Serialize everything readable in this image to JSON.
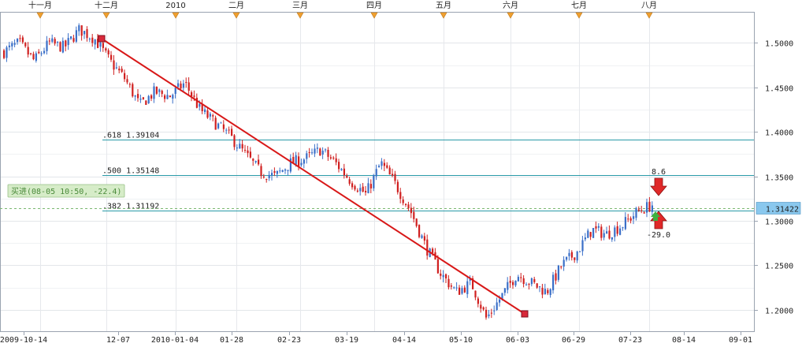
{
  "chart_data": {
    "type": "candlestick",
    "title": "",
    "xlabel": "",
    "ylabel": "",
    "x_axis": {
      "top_month_labels": [
        "十一月",
        "十二月",
        "2010",
        "二月",
        "三月",
        "四月",
        "五月",
        "六月",
        "七月",
        "八月"
      ],
      "bottom_date_labels": [
        "2009-10-14",
        "12-07",
        "2010-01-04",
        "01-28",
        "02-23",
        "03-19",
        "04-14",
        "05-10",
        "06-03",
        "06-29",
        "07-23",
        "08-14",
        "09-01"
      ]
    },
    "y_axis": {
      "range": [
        1.175,
        1.535
      ],
      "tick_labels": [
        "1.5000",
        "1.4500",
        "1.4000",
        "1.3500",
        "1.3000",
        "1.2500",
        "1.2000"
      ],
      "tick_values": [
        1.5,
        1.45,
        1.4,
        1.35,
        1.3,
        1.25,
        1.2
      ]
    },
    "grid": true,
    "current_price": {
      "label": "1.31422",
      "value": 1.31422
    },
    "fibonacci_levels": [
      {
        "label": ".618 1.39104",
        "value": 1.39104
      },
      {
        "label": ".500 1.35148",
        "value": 1.35148
      },
      {
        "label": ".382 1.31192",
        "value": 1.31192
      }
    ],
    "trendline": {
      "start": {
        "date": "2009-11-25",
        "price": 1.5145
      },
      "end": {
        "date": "2010-06-07",
        "price": 1.1875
      }
    },
    "trade_marker": {
      "label": "买进(08-05 10:50, -22.4)"
    },
    "signals": [
      {
        "type": "sell",
        "label": "8.6"
      },
      {
        "type": "buy",
        "label": "-29.0"
      }
    ],
    "series_anchor_prices": [
      1.49,
      1.5,
      1.48,
      1.5,
      1.495,
      1.515,
      1.505,
      1.48,
      1.46,
      1.43,
      1.445,
      1.44,
      1.455,
      1.425,
      1.41,
      1.395,
      1.375,
      1.355,
      1.35,
      1.365,
      1.37,
      1.38,
      1.365,
      1.345,
      1.33,
      1.365,
      1.34,
      1.31,
      1.27,
      1.24,
      1.22,
      1.23,
      1.19,
      1.215,
      1.24,
      1.23,
      1.22,
      1.25,
      1.265,
      1.29,
      1.285,
      1.295,
      1.31,
      1.318
    ]
  }
}
